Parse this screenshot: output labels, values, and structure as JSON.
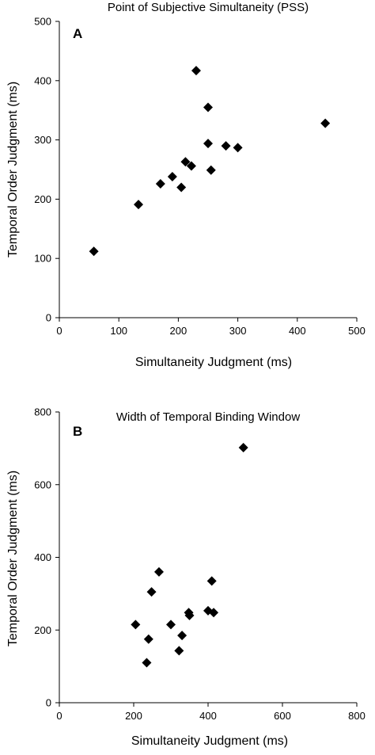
{
  "chart_data": [
    {
      "type": "scatter",
      "panel_label": "A",
      "title": "Point of Subjective Simultaneity (PSS)",
      "xlabel": "Simultaneity Judgment (ms)",
      "ylabel": "Temporal Order Judgment (ms)",
      "xlim": [
        0,
        500
      ],
      "ylim": [
        0,
        500
      ],
      "xticks": [
        "0",
        "100",
        "200",
        "300",
        "400",
        "500"
      ],
      "yticks": [
        "0",
        "100",
        "200",
        "300",
        "400",
        "500"
      ],
      "grid": false,
      "marker": "diamond",
      "points": [
        {
          "x": 58,
          "y": 112
        },
        {
          "x": 133,
          "y": 191
        },
        {
          "x": 170,
          "y": 226
        },
        {
          "x": 190,
          "y": 238
        },
        {
          "x": 205,
          "y": 220
        },
        {
          "x": 212,
          "y": 263
        },
        {
          "x": 222,
          "y": 256
        },
        {
          "x": 230,
          "y": 417
        },
        {
          "x": 250,
          "y": 355
        },
        {
          "x": 250,
          "y": 294
        },
        {
          "x": 255,
          "y": 249
        },
        {
          "x": 280,
          "y": 290
        },
        {
          "x": 300,
          "y": 287
        },
        {
          "x": 447,
          "y": 328
        }
      ]
    },
    {
      "type": "scatter",
      "panel_label": "B",
      "title": "Width of Temporal Binding Window",
      "xlabel": "Simultaneity Judgment (ms)",
      "ylabel": "Temporal Order Judgment (ms)",
      "xlim": [
        0,
        800
      ],
      "ylim": [
        0,
        800
      ],
      "xticks": [
        "0",
        "200",
        "400",
        "600",
        "800"
      ],
      "yticks": [
        "0",
        "200",
        "400",
        "600",
        "800"
      ],
      "grid": false,
      "marker": "diamond",
      "points": [
        {
          "x": 205,
          "y": 215
        },
        {
          "x": 235,
          "y": 110
        },
        {
          "x": 240,
          "y": 175
        },
        {
          "x": 248,
          "y": 305
        },
        {
          "x": 268,
          "y": 360
        },
        {
          "x": 300,
          "y": 215
        },
        {
          "x": 322,
          "y": 143
        },
        {
          "x": 330,
          "y": 185
        },
        {
          "x": 348,
          "y": 248
        },
        {
          "x": 350,
          "y": 240
        },
        {
          "x": 400,
          "y": 253
        },
        {
          "x": 410,
          "y": 335
        },
        {
          "x": 415,
          "y": 248
        },
        {
          "x": 495,
          "y": 702
        }
      ]
    }
  ]
}
